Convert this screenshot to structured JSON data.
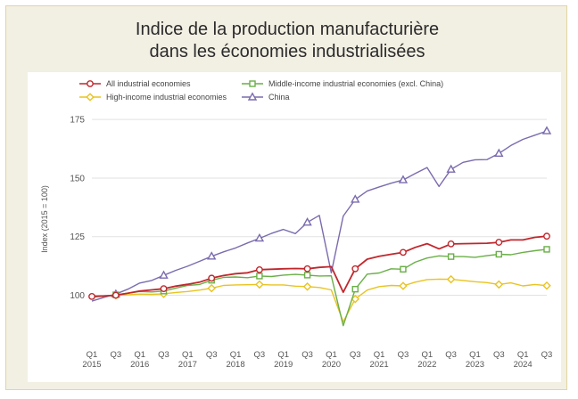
{
  "chart_data": {
    "type": "line",
    "title_line1": "Indice de la production manufacturière",
    "title_line2": "dans les économies industrialisées",
    "ylabel": "Index (2015 = 100)",
    "xlabel": "",
    "ylim": [
      85,
      180
    ],
    "yticks": [
      100,
      125,
      150,
      175
    ],
    "grid": true,
    "legend_position": "top",
    "x": [
      "Q1 2015",
      "Q2 2015",
      "Q3 2015",
      "Q4 2015",
      "Q1 2016",
      "Q2 2016",
      "Q3 2016",
      "Q4 2016",
      "Q1 2017",
      "Q2 2017",
      "Q3 2017",
      "Q4 2017",
      "Q1 2018",
      "Q2 2018",
      "Q3 2018",
      "Q4 2018",
      "Q1 2019",
      "Q2 2019",
      "Q3 2019",
      "Q4 2019",
      "Q1 2020",
      "Q2 2020",
      "Q3 2020",
      "Q4 2020",
      "Q1 2021",
      "Q2 2021",
      "Q3 2021",
      "Q4 2021",
      "Q1 2022",
      "Q2 2022",
      "Q3 2022",
      "Q4 2022",
      "Q1 2023",
      "Q2 2023",
      "Q3 2023",
      "Q4 2023",
      "Q1 2024",
      "Q2 2024",
      "Q3 2024"
    ],
    "xtick_labels": [
      {
        "q": "Q1",
        "year": "2015"
      },
      {
        "q": "Q3",
        "year": ""
      },
      {
        "q": "Q1",
        "year": "2016"
      },
      {
        "q": "Q3",
        "year": ""
      },
      {
        "q": "Q1",
        "year": "2017"
      },
      {
        "q": "Q3",
        "year": ""
      },
      {
        "q": "Q1",
        "year": "2018"
      },
      {
        "q": "Q3",
        "year": ""
      },
      {
        "q": "Q1",
        "year": "2019"
      },
      {
        "q": "Q3",
        "year": ""
      },
      {
        "q": "Q1",
        "year": "2020"
      },
      {
        "q": "Q3",
        "year": ""
      },
      {
        "q": "Q1",
        "year": "2021"
      },
      {
        "q": "Q3",
        "year": ""
      },
      {
        "q": "Q1",
        "year": "2022"
      },
      {
        "q": "Q3",
        "year": ""
      },
      {
        "q": "Q1",
        "year": "2023"
      },
      {
        "q": "Q3",
        "year": ""
      },
      {
        "q": "Q1",
        "year": "2024"
      },
      {
        "q": "Q3",
        "year": ""
      }
    ],
    "series": [
      {
        "name": "All industrial economies",
        "color": "#c0272d",
        "marker": "circle",
        "values": [
          99.5,
          99.7,
          100.0,
          100.9,
          101.8,
          102.3,
          102.8,
          103.9,
          104.7,
          105.6,
          107.3,
          108.4,
          109.2,
          109.6,
          110.9,
          111.1,
          111.3,
          111.4,
          111.3,
          111.9,
          112.2,
          101.3,
          111.3,
          115.4,
          116.6,
          117.5,
          118.3,
          120.4,
          122.0,
          119.8,
          121.9,
          122.0,
          122.1,
          122.2,
          122.6,
          123.6,
          123.6,
          124.7,
          125.2
        ],
        "markers": [
          0,
          2,
          6,
          10,
          14,
          18,
          22,
          26,
          30,
          34,
          38
        ]
      },
      {
        "name": "Middle-income industrial economies (excl. China)",
        "color": "#6aaf47",
        "marker": "square",
        "values": [
          99.2,
          99.6,
          100.2,
          100.9,
          101.6,
          101.4,
          101.8,
          103.0,
          104.2,
          104.6,
          106.4,
          107.6,
          107.8,
          107.5,
          108.2,
          108.0,
          108.6,
          108.9,
          108.6,
          108.2,
          108.3,
          87.0,
          102.6,
          109.0,
          109.5,
          111.3,
          111.1,
          114.1,
          115.9,
          116.8,
          116.5,
          116.5,
          116.2,
          116.9,
          117.5,
          117.3,
          118.3,
          119.0,
          119.6
        ],
        "markers": [
          2,
          6,
          10,
          14,
          18,
          22,
          26,
          30,
          34,
          38
        ]
      },
      {
        "name": "High-income industrial economies",
        "color": "#e9c321",
        "marker": "diamond",
        "values": [
          99.4,
          99.6,
          100.0,
          100.2,
          100.5,
          100.4,
          100.6,
          101.2,
          101.6,
          102.2,
          103.0,
          104.2,
          104.4,
          104.5,
          104.6,
          104.4,
          104.4,
          103.9,
          103.7,
          103.3,
          102.3,
          88.7,
          98.4,
          102.2,
          103.7,
          104.2,
          104.0,
          105.6,
          106.7,
          106.9,
          106.8,
          106.3,
          105.8,
          105.4,
          104.6,
          105.3,
          104.0,
          104.6,
          104.1
        ],
        "markers": [
          2,
          6,
          10,
          14,
          18,
          22,
          26,
          30,
          34,
          38
        ]
      },
      {
        "name": "China",
        "color": "#7b6bae",
        "marker": "triangle",
        "values": [
          97.5,
          99.1,
          100.5,
          102.6,
          105.2,
          106.3,
          108.5,
          110.6,
          112.4,
          114.5,
          116.6,
          118.5,
          120.2,
          122.3,
          124.3,
          126.4,
          128.1,
          126.3,
          131.1,
          134.1,
          109.6,
          133.8,
          140.9,
          144.5,
          146.2,
          147.8,
          149.2,
          151.9,
          154.5,
          146.4,
          153.7,
          156.7,
          157.8,
          157.9,
          160.5,
          163.9,
          166.5,
          168.3,
          170.1
        ],
        "markers": [
          2,
          6,
          10,
          14,
          18,
          22,
          26,
          30,
          34,
          38
        ]
      }
    ]
  }
}
